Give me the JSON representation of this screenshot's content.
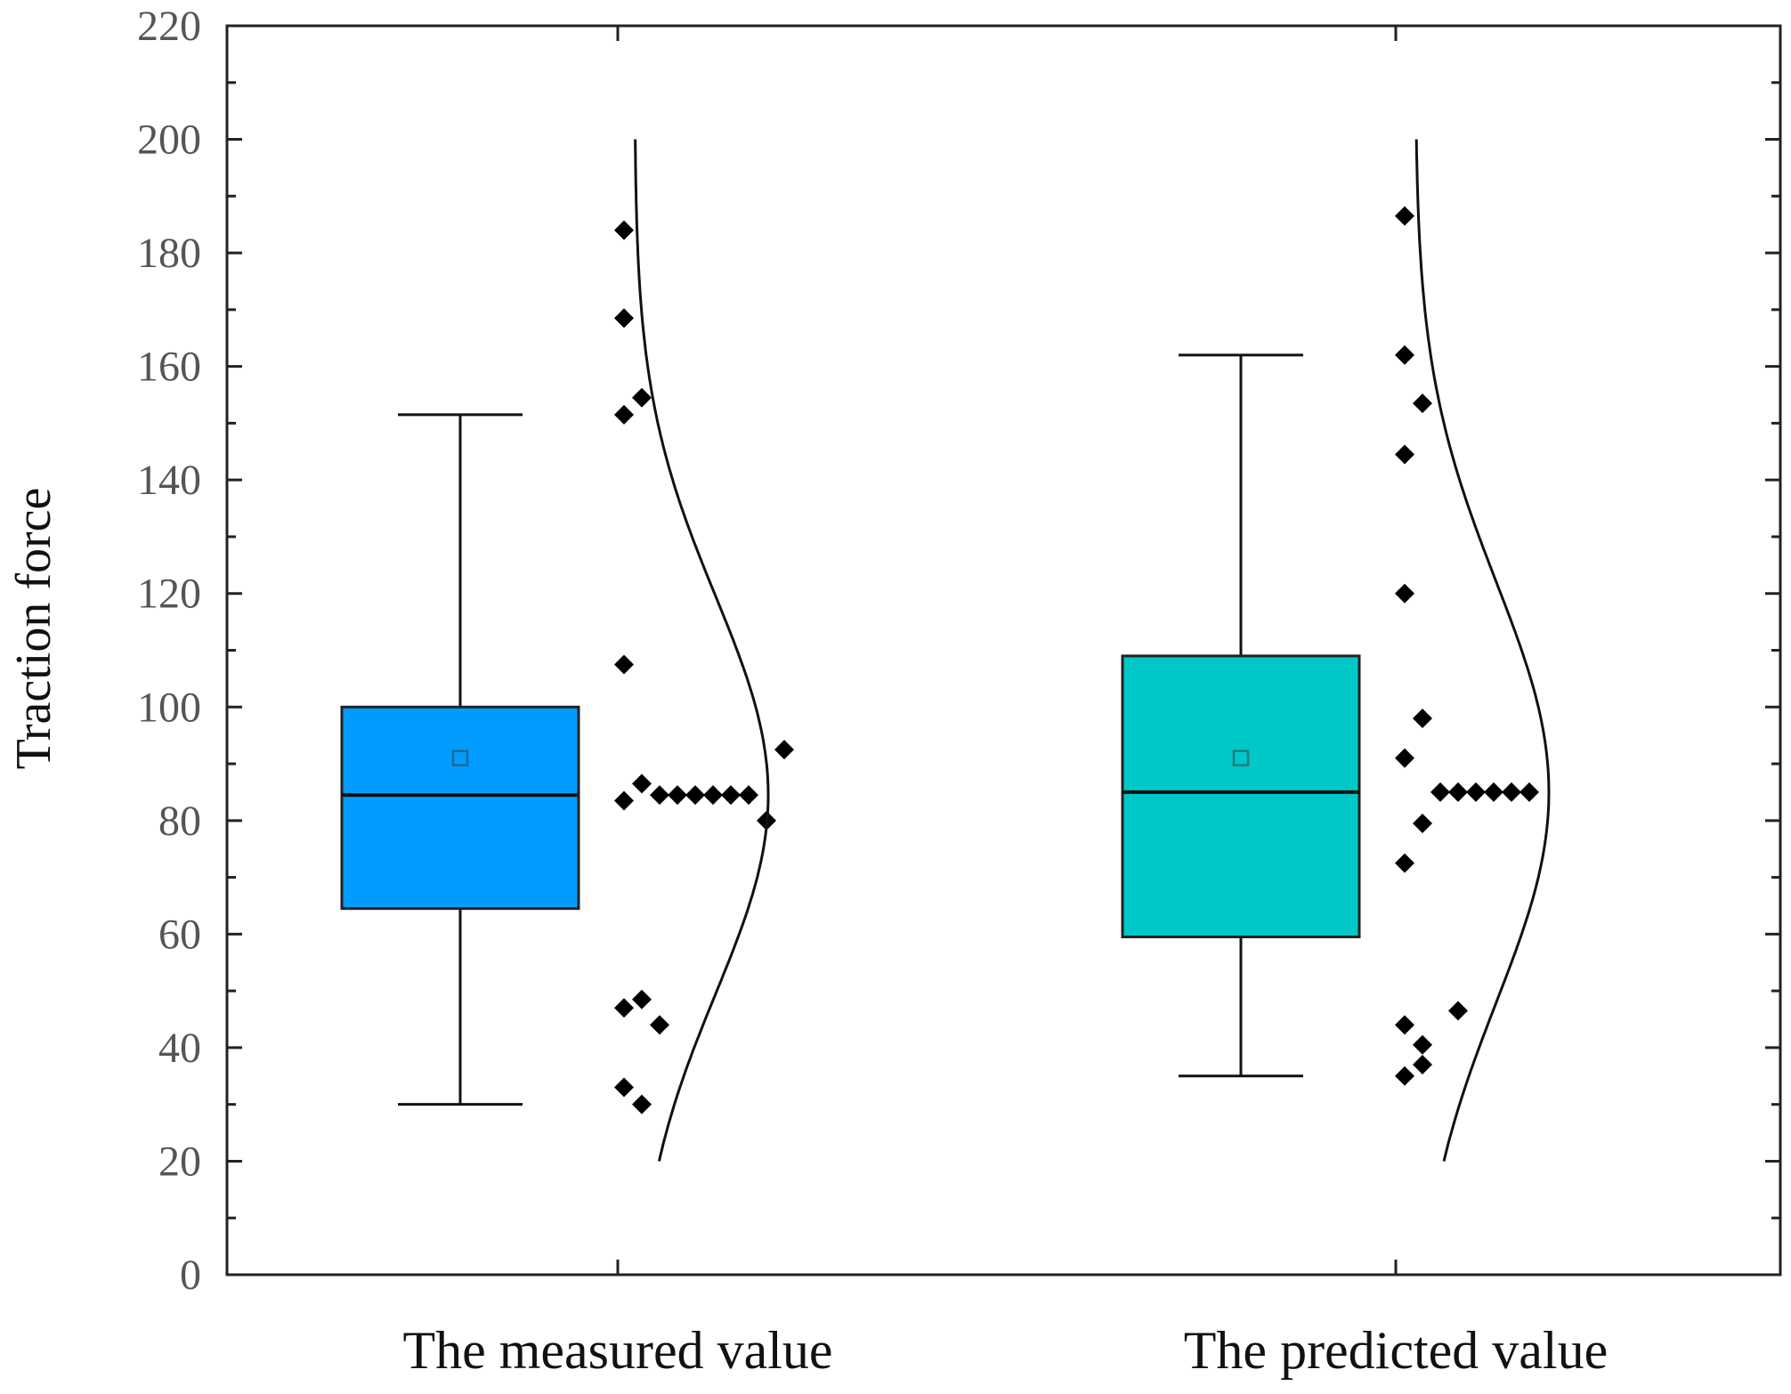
{
  "chart_data": {
    "type": "box",
    "ylabel": "Traction force",
    "xlabel": "",
    "ylim": [
      0,
      220
    ],
    "yticks": [
      0,
      20,
      40,
      60,
      80,
      100,
      120,
      140,
      160,
      180,
      200,
      220
    ],
    "y_minor_step": 10,
    "categories": [
      "The measured value",
      "The predicted value"
    ],
    "series": [
      {
        "name": "The measured value",
        "color": "#009cff",
        "box": {
          "min": 30,
          "q1": 64.5,
          "median": 84.5,
          "q3": 100,
          "max": 151.5,
          "mean": 91
        },
        "points": [
          [
            0,
            184
          ],
          [
            0,
            168.5
          ],
          [
            0.5,
            154.5
          ],
          [
            0,
            151.5
          ],
          [
            0,
            107.5
          ],
          [
            0.5,
            86.5
          ],
          [
            0,
            83.5
          ],
          [
            1,
            84.5
          ],
          [
            1.5,
            84.5
          ],
          [
            2,
            84.5
          ],
          [
            2.5,
            84.5
          ],
          [
            3,
            84.5
          ],
          [
            3.5,
            84.5
          ],
          [
            4,
            80
          ],
          [
            4.5,
            92.5
          ],
          [
            0.5,
            48.5
          ],
          [
            0,
            47
          ],
          [
            1,
            44
          ],
          [
            0,
            33
          ],
          [
            0.5,
            30
          ]
        ],
        "curve": {
          "center": 84.5,
          "spread": 35,
          "from": 20,
          "to": 200
        }
      },
      {
        "name": "The predicted value",
        "color": "#00c8c8",
        "box": {
          "min": 35,
          "q1": 59.5,
          "median": 85,
          "q3": 109,
          "max": 162,
          "mean": 91
        },
        "points": [
          [
            0,
            186.5
          ],
          [
            0,
            162
          ],
          [
            0.5,
            153.5
          ],
          [
            0,
            144.5
          ],
          [
            0,
            120
          ],
          [
            0.5,
            98
          ],
          [
            0,
            91
          ],
          [
            0.5,
            79.5
          ],
          [
            0,
            72.5
          ],
          [
            1,
            85
          ],
          [
            1.5,
            85
          ],
          [
            2,
            85
          ],
          [
            2.5,
            85
          ],
          [
            3,
            85
          ],
          [
            3.5,
            85
          ],
          [
            1.5,
            46.5
          ],
          [
            0,
            44
          ],
          [
            0.5,
            40.5
          ],
          [
            0.5,
            37
          ],
          [
            0,
            35
          ]
        ],
        "curve": {
          "center": 85,
          "spread": 37,
          "from": 20,
          "to": 200
        }
      }
    ]
  }
}
